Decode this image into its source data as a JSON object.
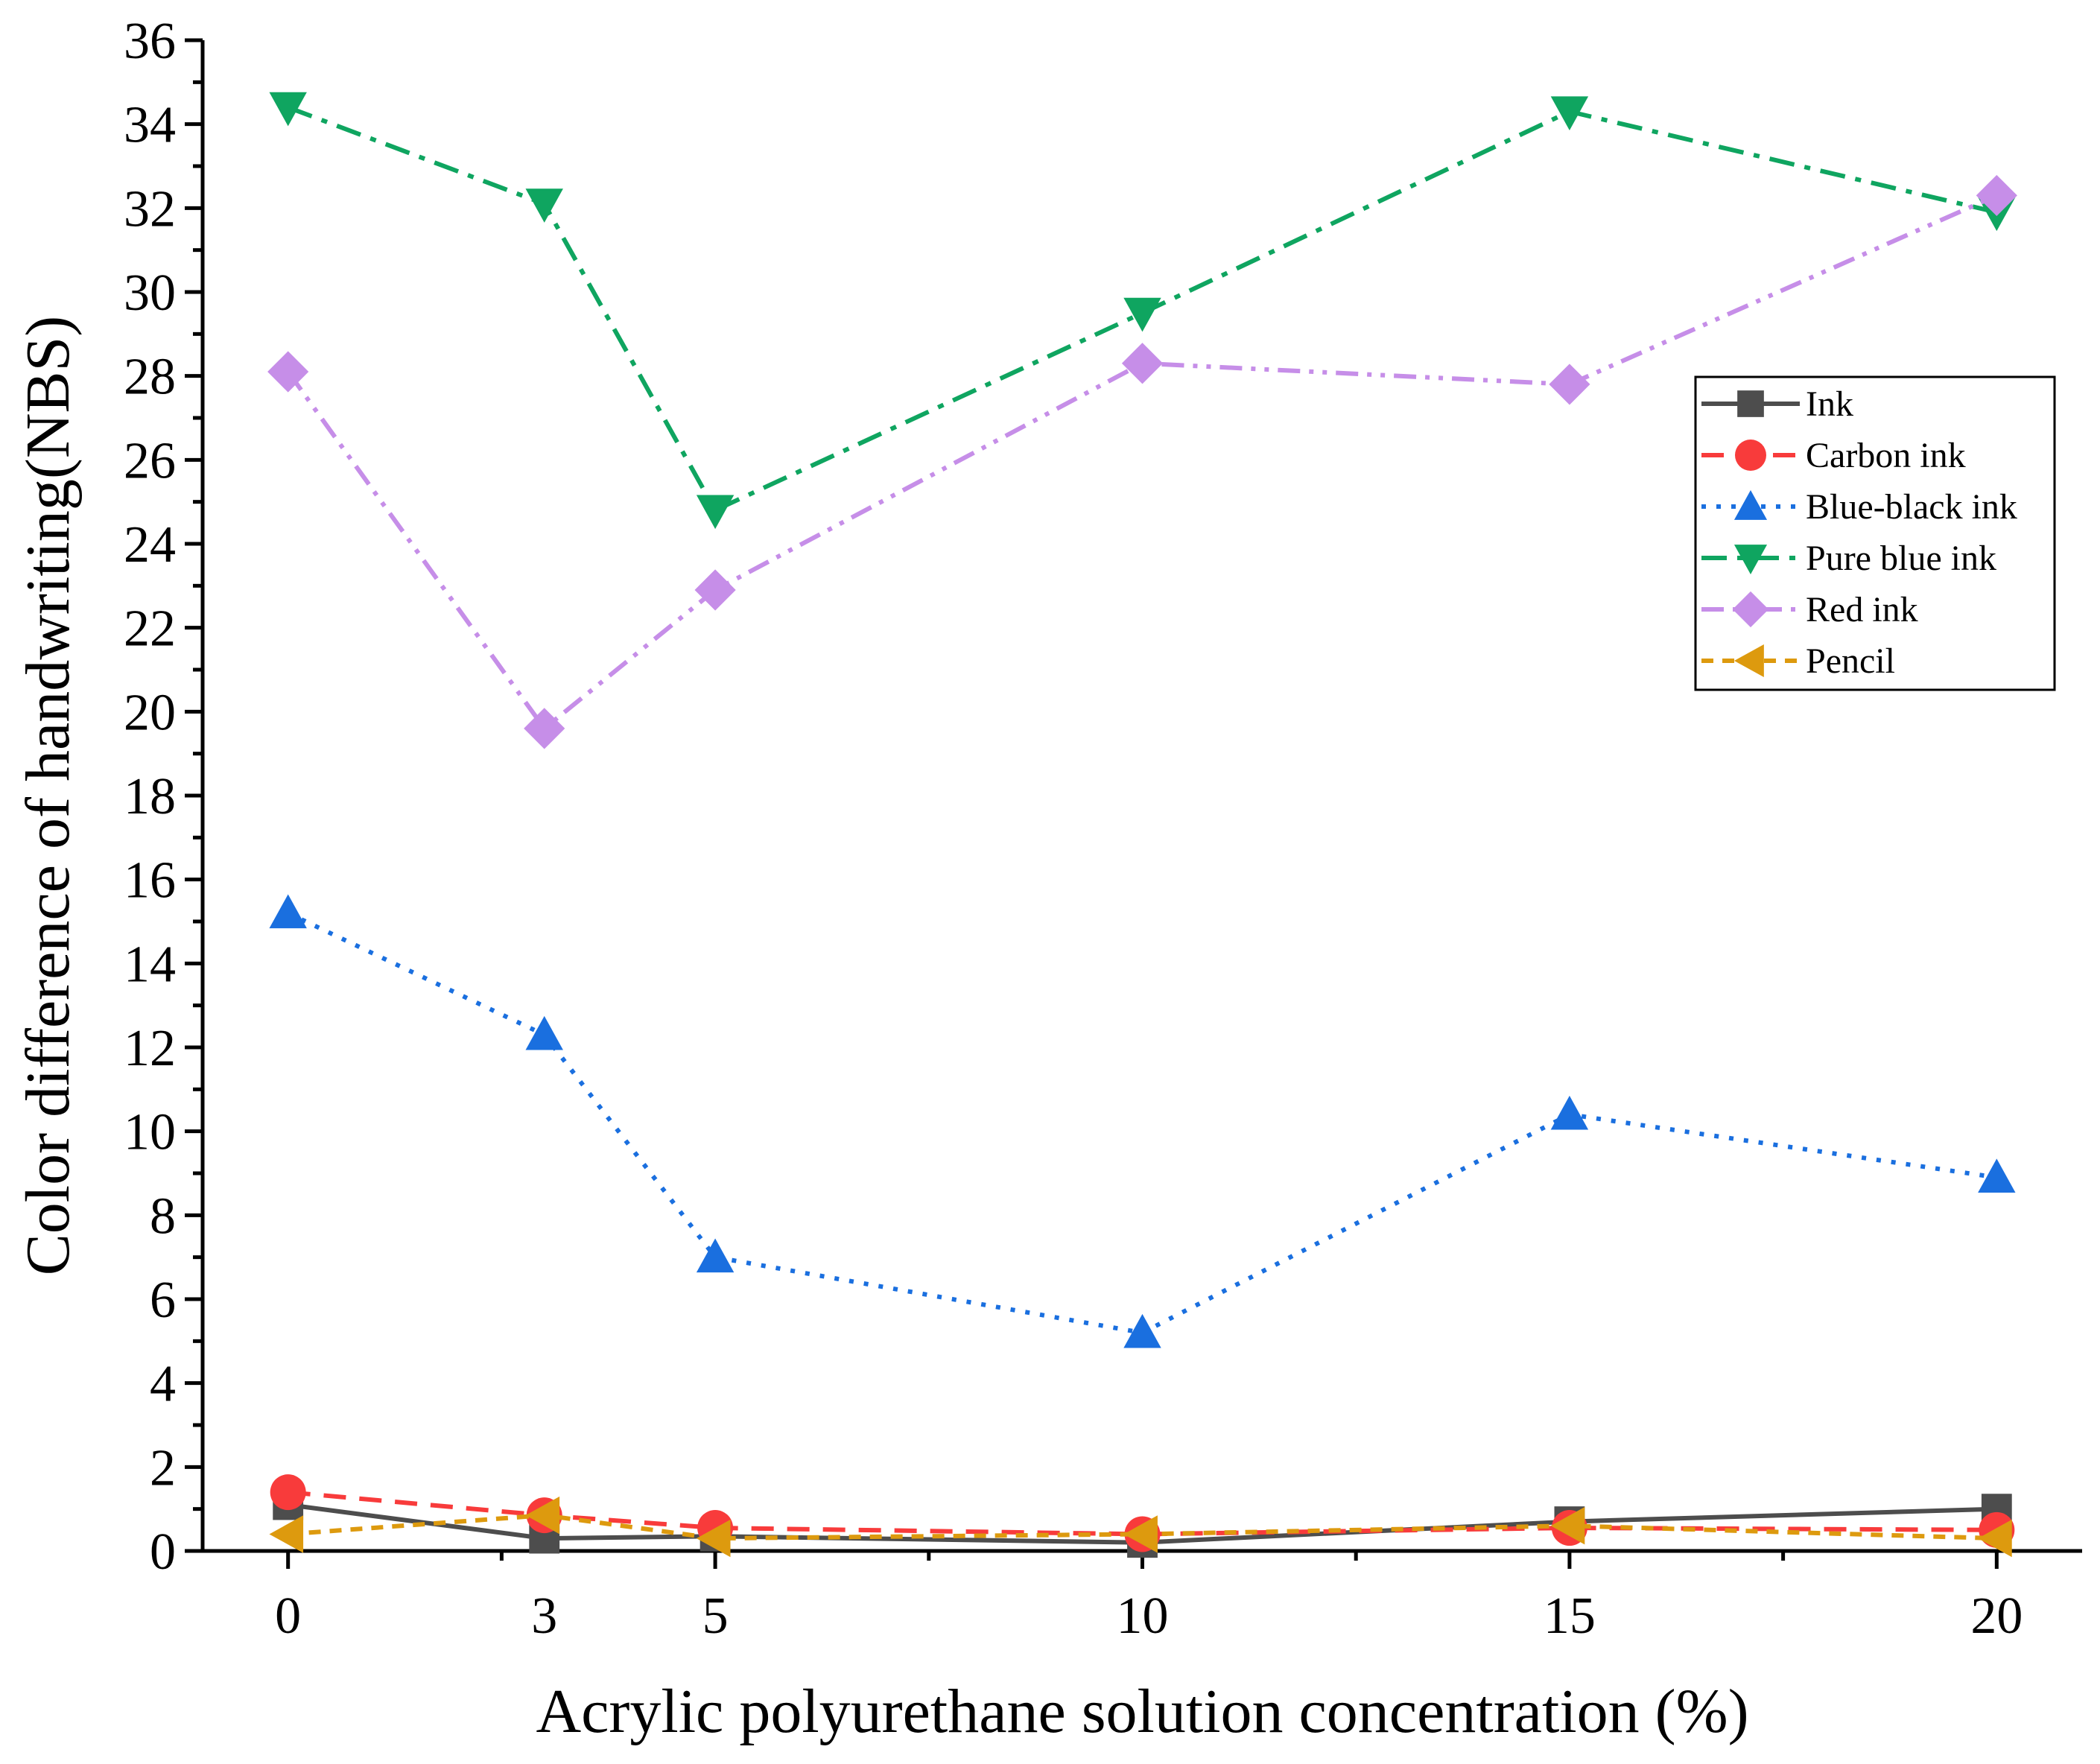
{
  "chart_data": {
    "type": "line",
    "x": [
      0,
      3,
      5,
      10,
      15,
      20
    ],
    "xlabel": "Acrylic polyurethane solution concentration (%)",
    "ylabel": "Color difference of handwriting(NBS)",
    "xlim": [
      -1,
      21
    ],
    "ylim": [
      0,
      36
    ],
    "x_ticks": [
      0,
      3,
      5,
      10,
      15,
      20
    ],
    "y_ticks": [
      0,
      2,
      4,
      6,
      8,
      10,
      12,
      14,
      16,
      18,
      20,
      22,
      24,
      26,
      28,
      30,
      32,
      34,
      36
    ],
    "grid": false,
    "legend_position": "right",
    "series": [
      {
        "name": "Ink",
        "values": [
          1.1,
          0.3,
          0.35,
          0.2,
          0.7,
          1.0
        ],
        "color": "#4d4d4d",
        "marker": "square",
        "dash": "solid"
      },
      {
        "name": "Carbon ink",
        "values": [
          1.4,
          0.85,
          0.55,
          0.4,
          0.55,
          0.5
        ],
        "color": "#f83b3b",
        "marker": "circle",
        "dash": "dash"
      },
      {
        "name": "Blue-black ink",
        "values": [
          15.2,
          12.3,
          7.0,
          5.2,
          10.4,
          8.9
        ],
        "color": "#1a6fdf",
        "marker": "triangle-up",
        "dash": "dot"
      },
      {
        "name": "Pure blue ink",
        "values": [
          34.4,
          32.1,
          24.8,
          29.5,
          34.3,
          31.9
        ],
        "color": "#0fa560",
        "marker": "triangle-down",
        "dash": "dashdot"
      },
      {
        "name": "Red ink",
        "values": [
          28.1,
          19.6,
          22.9,
          28.3,
          27.8,
          32.3
        ],
        "color": "#c68ee8",
        "marker": "diamond",
        "dash": "dashdotdot"
      },
      {
        "name": "Pencil",
        "values": [
          0.4,
          0.85,
          0.3,
          0.4,
          0.6,
          0.3
        ],
        "color": "#dd9a0e",
        "marker": "triangle-left",
        "dash": "shortdash"
      }
    ]
  }
}
